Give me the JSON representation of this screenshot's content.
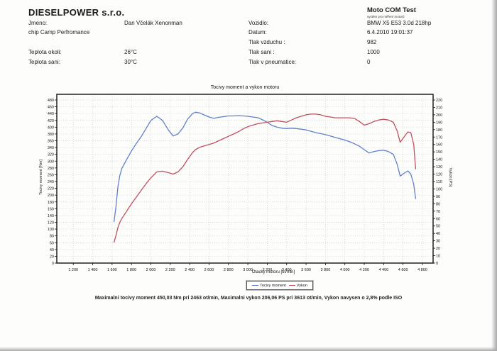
{
  "header": {
    "company": "DIESELPOWER s.r.o.",
    "jmeno_label": "Jmeno:",
    "jmeno_value": "Dan Včelák Xenonman",
    "chip_note": "chip Camp Perfromance",
    "teplota_okoli_label": "Teplota okoli:",
    "teplota_okoli_value": "26°C",
    "teplota_sani_label": "Teplota sani:",
    "teplota_sani_value": "30°C",
    "app_title": "Moto COM Test",
    "app_subtitle": "systém pro měření motorů",
    "vozidlo_label": "Vozidlo:",
    "vozidlo_value": "BMW X5 E53 3.0d 218hp",
    "datum_label": "Datum:",
    "datum_value": "6.4.2010 19:01:37",
    "tlak_vzduchu_label": "Tlak vzduchu :",
    "tlak_vzduchu_value": "982",
    "tlak_sani_label": "Tlak sani :",
    "tlak_sani_value": "1000",
    "tlak_pneu_label": "Tlak v pneumatice:",
    "tlak_pneu_value": "0"
  },
  "legend": {
    "moment": "Tocivy moment",
    "vykon": "Vykon"
  },
  "summary": "Maximalni tocivy moment 450,03 Nm pri 2463 ot/min,  Maximalni vykon 206,06 PS pri 3613 ot/min,  Vykon navysen o 2,8% podle ISO",
  "chart_data": {
    "type": "line",
    "title": "Tocivy moment a vykon motoru",
    "xlabel": "Otacky motoru [ot/min]",
    "ylabel_left": "Tocivy moment [Nm]",
    "ylabel_right": "Vykon [PS]",
    "xlim": [
      1030,
      4910
    ],
    "x_ticks": [
      1200,
      1400,
      1600,
      1800,
      2000,
      2200,
      2400,
      2600,
      2800,
      3000,
      3200,
      3400,
      3600,
      3800,
      4000,
      4200,
      4400,
      4600,
      4800
    ],
    "ylim_left": [
      0,
      480
    ],
    "ytick_left": 20,
    "ylim_right": [
      0,
      220
    ],
    "ytick_right": 10,
    "grid": true,
    "legend_position": "bottom",
    "x": [
      1620,
      1640,
      1660,
      1680,
      1700,
      1750,
      1800,
      1850,
      1900,
      1950,
      2000,
      2060,
      2120,
      2180,
      2230,
      2280,
      2330,
      2380,
      2430,
      2460,
      2500,
      2550,
      2600,
      2650,
      2700,
      2750,
      2800,
      2850,
      2900,
      2950,
      3000,
      3050,
      3100,
      3150,
      3200,
      3250,
      3300,
      3350,
      3400,
      3450,
      3500,
      3550,
      3600,
      3650,
      3700,
      3750,
      3800,
      3850,
      3900,
      3950,
      4000,
      4050,
      4100,
      4150,
      4200,
      4250,
      4300,
      4350,
      4400,
      4450,
      4500,
      4540,
      4570,
      4610,
      4650,
      4680,
      4710,
      4730
    ],
    "series": [
      {
        "name": "Tocivy moment",
        "axis": "left",
        "color": "#6080c8",
        "unit": "Nm",
        "values": [
          122,
          165,
          225,
          258,
          278,
          305,
          330,
          352,
          372,
          396,
          420,
          432,
          420,
          392,
          374,
          380,
          398,
          424,
          440,
          444,
          442,
          436,
          430,
          426,
          429,
          431,
          433,
          433,
          434,
          433,
          432,
          430,
          428,
          422,
          414,
          405,
          400,
          397,
          396,
          397,
          396,
          394,
          392,
          388,
          384,
          381,
          378,
          374,
          370,
          366,
          362,
          357,
          351,
          344,
          334,
          324,
          328,
          331,
          332,
          328,
          320,
          290,
          256,
          264,
          271,
          262,
          232,
          190
        ]
      },
      {
        "name": "Vykon",
        "axis": "right",
        "color": "#c05060",
        "unit": "PS",
        "values": [
          28,
          37,
          48,
          55,
          60,
          70,
          80,
          89,
          98,
          107,
          115,
          123,
          124,
          122,
          120,
          123,
          130,
          140,
          149,
          153,
          156,
          158,
          160,
          162,
          165,
          168,
          171,
          174,
          177,
          181,
          184,
          186,
          188,
          189,
          190,
          191,
          192,
          191,
          190,
          193,
          196,
          198,
          200,
          201,
          201,
          200,
          198,
          197,
          196,
          196,
          196,
          196,
          195,
          191,
          186,
          188,
          191,
          193,
          194,
          193,
          190,
          178,
          163,
          170,
          177,
          176,
          160,
          127
        ]
      }
    ],
    "max_torque": "450,03 Nm @ 2463 ot/min",
    "max_power": "206,06 PS @ 3613 ot/min"
  }
}
